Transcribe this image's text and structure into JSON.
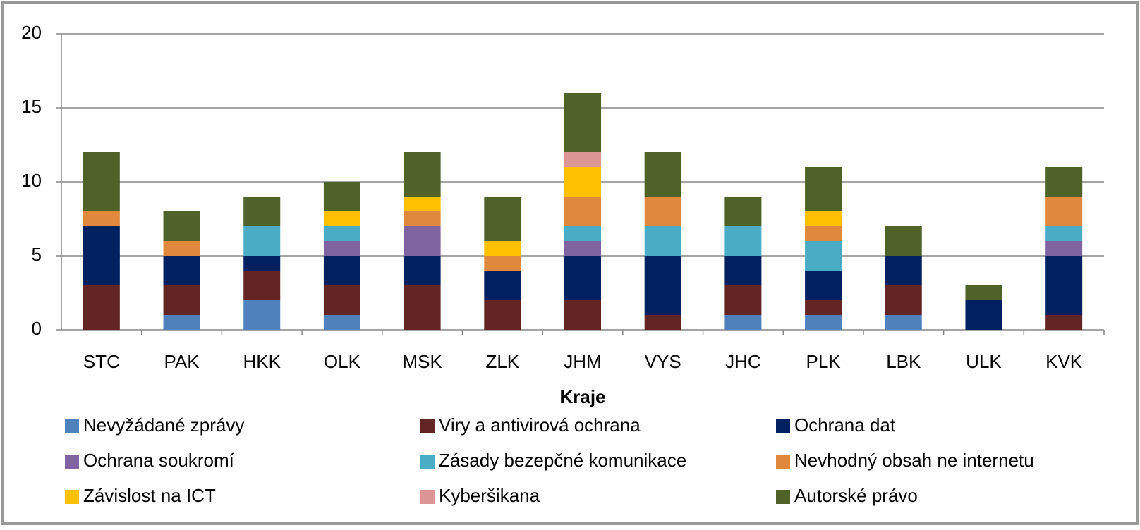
{
  "chart_data": {
    "type": "stacked_bar",
    "x_label": "Kraje",
    "categories": [
      "STC",
      "PAK",
      "HKK",
      "OLK",
      "MSK",
      "ZLK",
      "JHM",
      "VYS",
      "JHC",
      "PLK",
      "LBK",
      "ULK",
      "KVK"
    ],
    "series": [
      {
        "name": "Nevyžádané zprávy",
        "color": "#4f81bd",
        "values": [
          0,
          1,
          2,
          1,
          0,
          0,
          0,
          0,
          1,
          1,
          1,
          0,
          0
        ]
      },
      {
        "name": "Viry a antivirová ochrana",
        "color": "#632523",
        "values": [
          3,
          2,
          2,
          2,
          3,
          2,
          2,
          1,
          2,
          1,
          2,
          0,
          1
        ]
      },
      {
        "name": "Ochrana dat",
        "color": "#002060",
        "values": [
          4,
          2,
          1,
          2,
          2,
          2,
          3,
          4,
          2,
          2,
          2,
          2,
          4
        ]
      },
      {
        "name": "Ochrana soukromí",
        "color": "#8064a2",
        "values": [
          0,
          0,
          0,
          1,
          2,
          0,
          1,
          0,
          0,
          0,
          0,
          0,
          1
        ]
      },
      {
        "name": "Zásady bezepčné komunikace",
        "color": "#4bacc6",
        "values": [
          0,
          0,
          2,
          1,
          0,
          0,
          1,
          2,
          2,
          2,
          0,
          0,
          1
        ]
      },
      {
        "name": "Nevhodný obsah ne internetu",
        "color": "#e0883c",
        "values": [
          1,
          1,
          0,
          0,
          1,
          1,
          2,
          2,
          0,
          1,
          0,
          0,
          2
        ]
      },
      {
        "name": "Závislost na ICT",
        "color": "#ffc000",
        "values": [
          0,
          0,
          0,
          1,
          1,
          1,
          2,
          0,
          0,
          1,
          0,
          0,
          0
        ]
      },
      {
        "name": "Kyberšikana",
        "color": "#d99694",
        "values": [
          0,
          0,
          0,
          0,
          0,
          0,
          1,
          0,
          0,
          0,
          0,
          0,
          0
        ]
      },
      {
        "name": "Autorské právo",
        "color": "#4f6228",
        "values": [
          4,
          2,
          2,
          2,
          3,
          3,
          4,
          3,
          2,
          3,
          2,
          1,
          2
        ]
      }
    ],
    "ylim": [
      0,
      20
    ],
    "yticks": [
      0,
      5,
      10,
      15,
      20
    ],
    "grid": true,
    "legend": "bottom"
  }
}
